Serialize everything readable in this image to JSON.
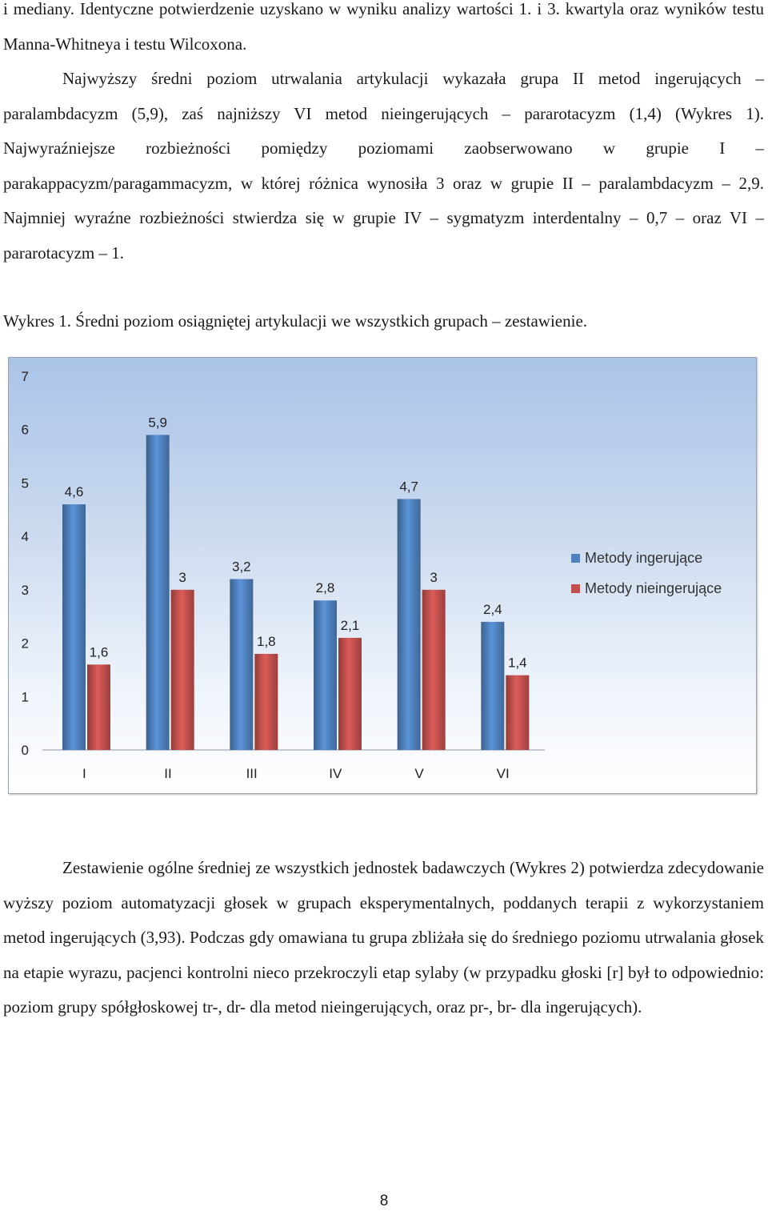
{
  "page": {
    "paragraph_1": "i mediany. Identyczne potwierdzenie uzyskano w wyniku analizy wartości 1. i 3. kwartyla oraz wyników testu Manna-Whitneya i testu Wilcoxona.",
    "paragraph_2": "Najwyższy średni poziom utrwalania artykulacji wykazała grupa II metod ingerujących – paralambdacyzm (5,9), zaś najniższy VI metod nieingerujących – pararotacyzm (1,4) (Wykres 1). Najwyraźniejsze rozbieżności pomiędzy poziomami zaobserwowano w grupie I – parakappacyzm/paragammacyzm, w której różnica wynosiła 3 oraz w grupie II – paralambdacyzm – 2,9. Najmniej wyraźne rozbieżności stwierdza się w grupie IV – sygmatyzm interdentalny – 0,7 – oraz VI – pararotacyzm – 1.",
    "chart_caption": "Wykres 1. Średni poziom osiągniętej artykulacji we wszystkich grupach – zestawienie.",
    "paragraph_3": "Zestawienie ogólne średniej ze wszystkich jednostek badawczych (Wykres 2) potwierdza zdecydowanie wyższy poziom automatyzacji głosek w grupach eksperymentalnych, poddanych terapii z wykorzystaniem metod ingerujących (3,93). Podczas gdy omawiana tu grupa zbliżała się do średniego poziomu utrwalania głosek na etapie wyrazu, pacjenci kontrolni nieco przekroczyli etap sylaby (w przypadku głoski [r] był to odpowiednio: poziom grupy spółgłoskowej tr-, dr- dla metod nieingerujących, oraz pr-, br- dla ingerujących).",
    "page_number": "8"
  },
  "chart_data": {
    "type": "bar",
    "categories": [
      "I",
      "II",
      "III",
      "IV",
      "V",
      "VI"
    ],
    "series": [
      {
        "name": "Metody ingerujące",
        "values": [
          4.6,
          5.9,
          3.2,
          2.8,
          4.7,
          2.4
        ],
        "labels": [
          "4,6",
          "5,9",
          "3,2",
          "2,8",
          "4,7",
          "2,4"
        ],
        "color": "#4f81bd"
      },
      {
        "name": "Metody nieingerujące",
        "values": [
          1.6,
          3,
          1.8,
          2.1,
          3,
          1.4
        ],
        "labels": [
          "1,6",
          "3",
          "1,8",
          "2,1",
          "3",
          "1,4"
        ],
        "color": "#c0504d"
      }
    ],
    "ylim": [
      0,
      7
    ],
    "yticks": [
      0,
      1,
      2,
      3,
      4,
      5,
      6,
      7
    ],
    "legend_position": "right",
    "grid": false
  }
}
